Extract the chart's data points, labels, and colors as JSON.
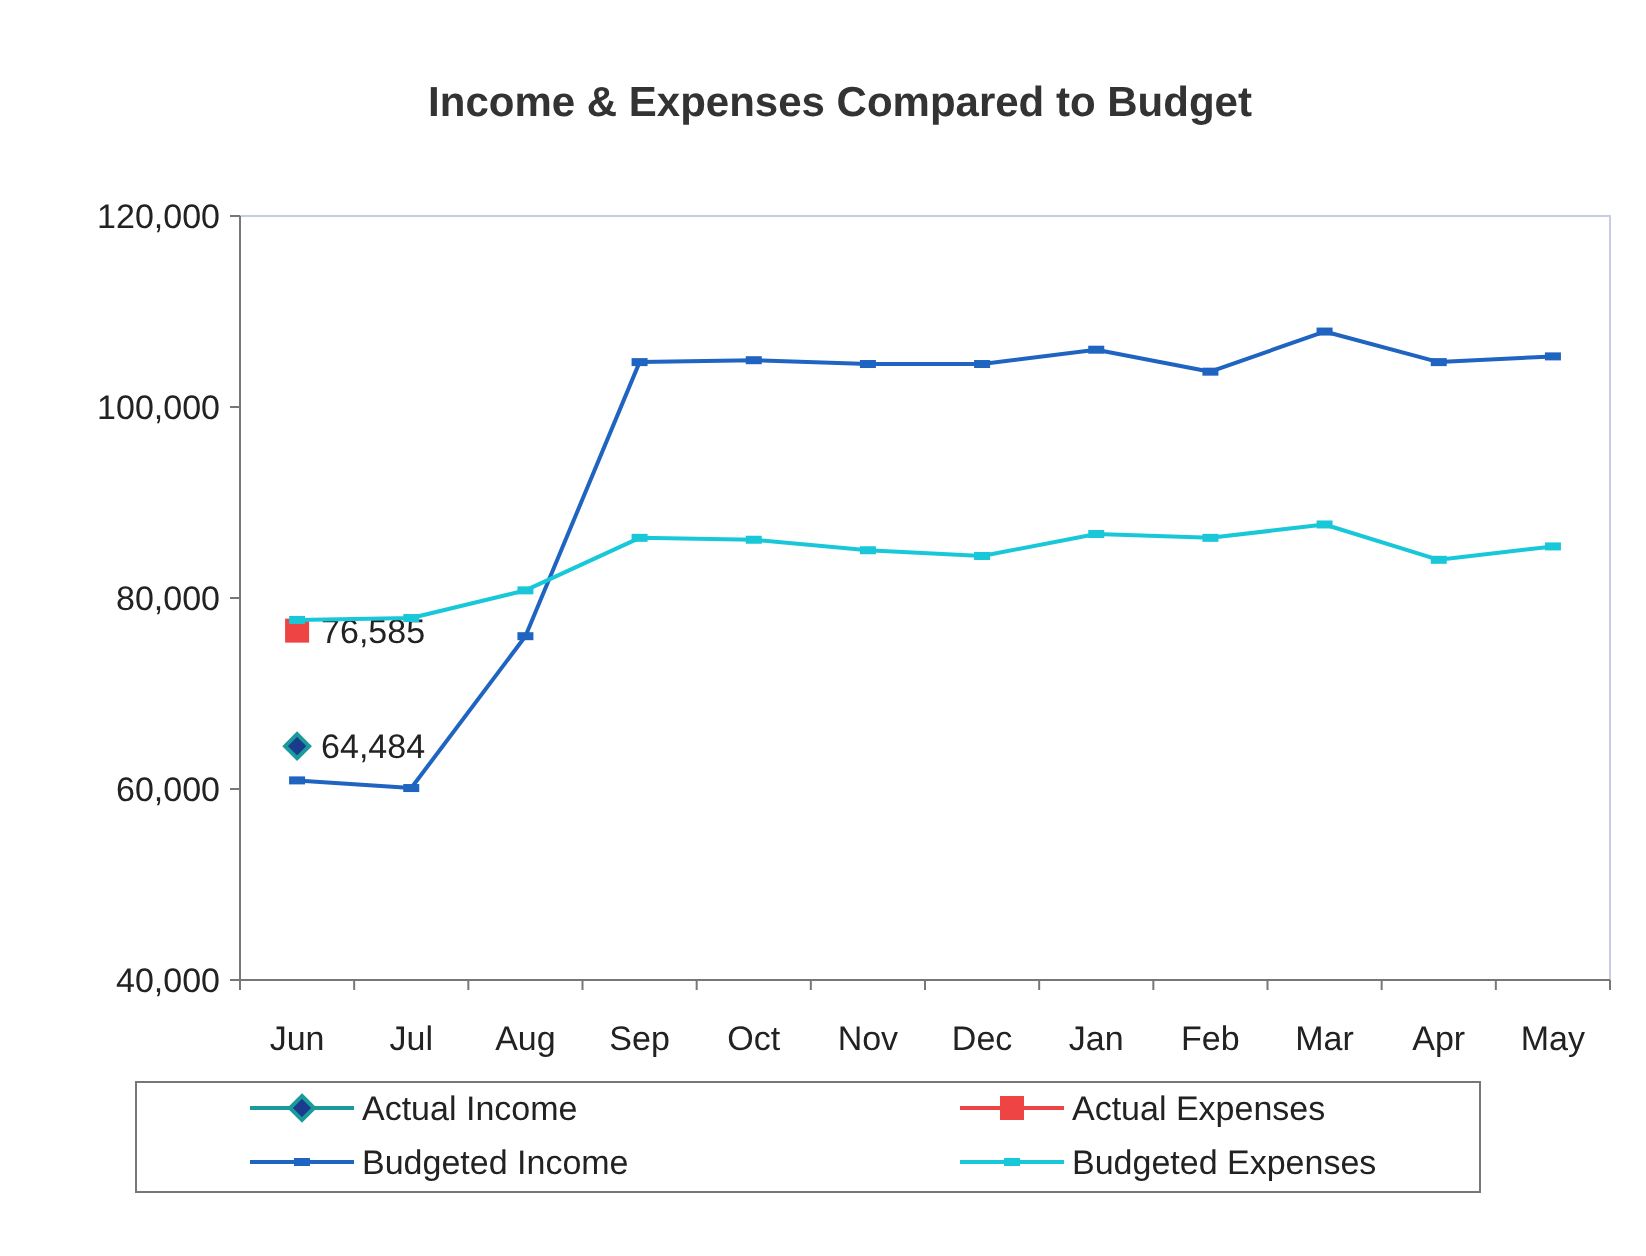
{
  "chart_data": {
    "type": "line",
    "title": "Income & Expenses Compared to Budget",
    "categories": [
      "Jun",
      "Jul",
      "Aug",
      "Sep",
      "Oct",
      "Nov",
      "Dec",
      "Jan",
      "Feb",
      "Mar",
      "Apr",
      "May"
    ],
    "series": [
      {
        "name": "Actual Income",
        "color": "#1a9a9a",
        "marker": "diamond",
        "values": [
          64484,
          null,
          null,
          null,
          null,
          null,
          null,
          null,
          null,
          null,
          null,
          null
        ],
        "value_labels": [
          "64,484",
          null,
          null,
          null,
          null,
          null,
          null,
          null,
          null,
          null,
          null,
          null
        ]
      },
      {
        "name": "Actual Expenses",
        "color": "#ee4444",
        "marker": "square",
        "values": [
          76585,
          null,
          null,
          null,
          null,
          null,
          null,
          null,
          null,
          null,
          null,
          null
        ],
        "value_labels": [
          "76,585",
          null,
          null,
          null,
          null,
          null,
          null,
          null,
          null,
          null,
          null,
          null
        ]
      },
      {
        "name": "Budgeted Income",
        "color": "#1e64c0",
        "marker": "square",
        "values": [
          60900,
          60100,
          76000,
          104700,
          104900,
          104500,
          104500,
          106000,
          103700,
          107900,
          104700,
          105300
        ]
      },
      {
        "name": "Budgeted Expenses",
        "color": "#18c8d8",
        "marker": "square",
        "values": [
          77700,
          77900,
          80800,
          86300,
          86100,
          85000,
          84400,
          86700,
          86300,
          87700,
          84000,
          85400
        ]
      }
    ],
    "ylim": [
      40000,
      120000
    ],
    "yticks": [
      {
        "value": 40000,
        "label": "40,000"
      },
      {
        "value": 60000,
        "label": "60,000"
      },
      {
        "value": 80000,
        "label": "80,000"
      },
      {
        "value": 100000,
        "label": "100,000"
      },
      {
        "value": 120000,
        "label": "120,000"
      }
    ],
    "grid": false,
    "legend": "bottom",
    "line_style": "solid"
  }
}
